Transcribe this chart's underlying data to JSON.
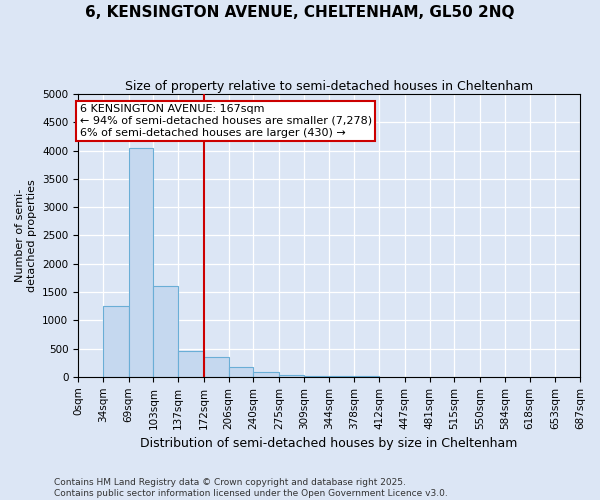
{
  "title": "6, KENSINGTON AVENUE, CHELTENHAM, GL50 2NQ",
  "subtitle": "Size of property relative to semi-detached houses in Cheltenham",
  "xlabel": "Distribution of semi-detached houses by size in Cheltenham",
  "ylabel": "Number of semi-\ndetached properties",
  "bar_edges": [
    0,
    34,
    69,
    103,
    137,
    172,
    206,
    240,
    275,
    309,
    344,
    378,
    412,
    447,
    481,
    515,
    550,
    584,
    618,
    653,
    687
  ],
  "bar_values": [
    0,
    1250,
    4050,
    1600,
    450,
    350,
    180,
    80,
    40,
    20,
    10,
    8,
    5,
    4,
    3,
    2,
    2,
    1,
    1,
    1
  ],
  "bar_color": "#c5d8ef",
  "bar_edge_color": "#6aaed6",
  "property_line_x": 172,
  "property_line_color": "#cc0000",
  "ylim": [
    0,
    5000
  ],
  "yticks": [
    0,
    500,
    1000,
    1500,
    2000,
    2500,
    3000,
    3500,
    4000,
    4500,
    5000
  ],
  "annotation_title": "6 KENSINGTON AVENUE: 167sqm",
  "annotation_line1": "← 94% of semi-detached houses are smaller (7,278)",
  "annotation_line2": "6% of semi-detached houses are larger (430) →",
  "footer_line1": "Contains HM Land Registry data © Crown copyright and database right 2025.",
  "footer_line2": "Contains public sector information licensed under the Open Government Licence v3.0.",
  "background_color": "#dce6f5",
  "plot_background_color": "#dce6f5",
  "tick_labels": [
    "0sqm",
    "34sqm",
    "69sqm",
    "103sqm",
    "137sqm",
    "172sqm",
    "206sqm",
    "240sqm",
    "275sqm",
    "309sqm",
    "344sqm",
    "378sqm",
    "412sqm",
    "447sqm",
    "481sqm",
    "515sqm",
    "550sqm",
    "584sqm",
    "618sqm",
    "653sqm",
    "687sqm"
  ],
  "title_fontsize": 11,
  "subtitle_fontsize": 9,
  "xlabel_fontsize": 9,
  "ylabel_fontsize": 8,
  "tick_fontsize": 7.5,
  "footer_fontsize": 6.5,
  "annotation_fontsize": 8
}
